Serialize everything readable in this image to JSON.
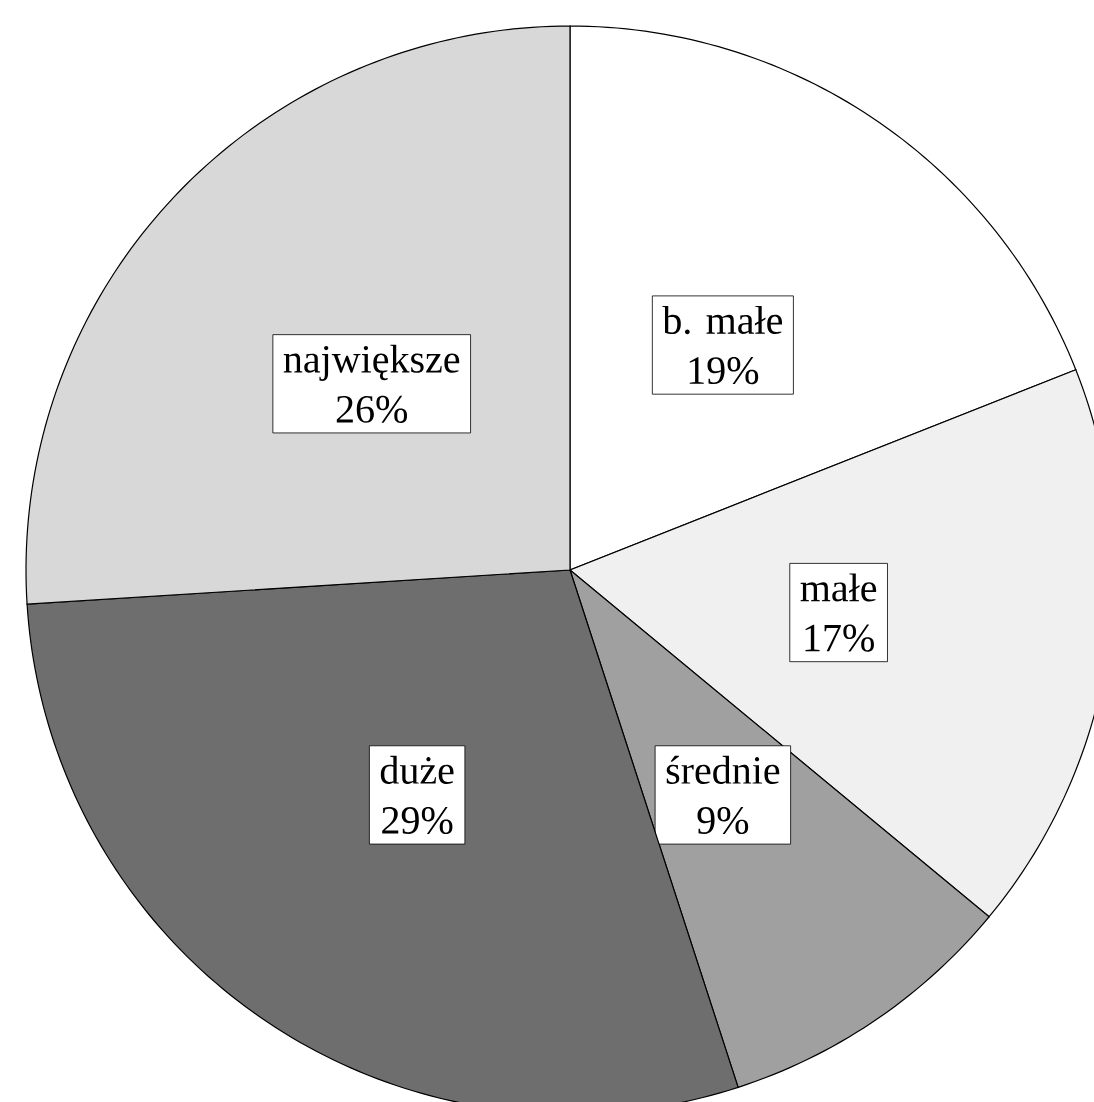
{
  "chart_data": {
    "type": "pie",
    "categories": [
      "b. małe",
      "małe",
      "średnie",
      "duże",
      "największe"
    ],
    "values": [
      19,
      17,
      9,
      29,
      26
    ],
    "value_labels": [
      "19%",
      "17%",
      "9%",
      "29%",
      "26%"
    ],
    "colors": [
      "#ffffff",
      "#f0f0f0",
      "#a0a0a0",
      "#6e6e6e",
      "#d8d8d8"
    ]
  }
}
